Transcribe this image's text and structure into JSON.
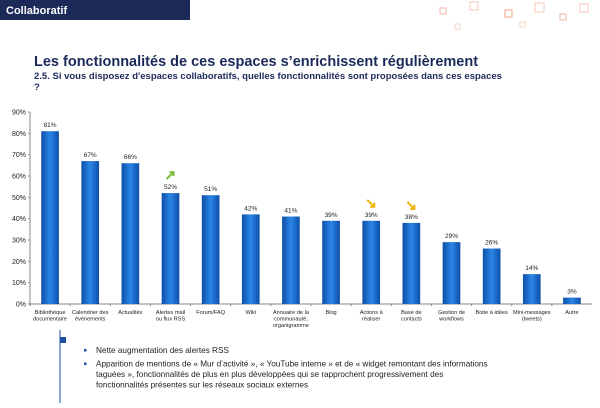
{
  "header": {
    "section": "Collaboratif"
  },
  "title": "Les fonctionnalités de ces espaces s’enrichissent régulièrement",
  "subtitle": "2.5. Si vous disposez d'espaces collaboratifs, quelles fonctionnalités sont proposées dans ces espaces ?",
  "chart_data": {
    "type": "bar",
    "categories": [
      "Bibliothèque\ndocumentaire",
      "Calendrier des\névénements",
      "Actualités",
      "Alertes mail\nou flux RSS",
      "Forum/FAQ",
      "Wiki",
      "Annuaire de la\ncommunauté,\norganigramme",
      "Blog",
      "Actions à\nréaliser",
      "Base de\ncontacts",
      "Gestion de\nworkflows",
      "Boite à idées",
      "Mini-messages\n(tweets)",
      "Autre"
    ],
    "values": [
      81,
      67,
      66,
      52,
      51,
      42,
      41,
      39,
      39,
      38,
      29,
      26,
      14,
      3
    ],
    "value_labels": [
      "81%",
      "67%",
      "66%",
      "52%",
      "51%",
      "42%",
      "41%",
      "39%",
      "39%",
      "38%",
      "29%",
      "26%",
      "14%",
      "3%"
    ],
    "color": "#1f74d6",
    "ylim": [
      0,
      90
    ],
    "yticks": [
      {
        "value": 0,
        "label": "0%"
      },
      {
        "value": 10,
        "label": "10%"
      },
      {
        "value": 20,
        "label": "20%"
      },
      {
        "value": 30,
        "label": "30%"
      },
      {
        "value": 40,
        "label": "40%"
      },
      {
        "value": 50,
        "label": "50%"
      },
      {
        "value": 60,
        "label": "60%"
      },
      {
        "value": 70,
        "label": "70%"
      },
      {
        "value": 80,
        "label": "80%"
      },
      {
        "value": 90,
        "label": "90%"
      }
    ],
    "grid": false
  },
  "bullets": [
    "Nette augmentation des alertes RSS",
    "Apparition de mentions de « Mur d’activité », « YouTube interne » et de « widget remontant des informations taguées », fonctionnalités de plus en plus développées qui se rapprochent progressivement des fonctionnalités présentes sur les réseaux sociaux externes"
  ]
}
